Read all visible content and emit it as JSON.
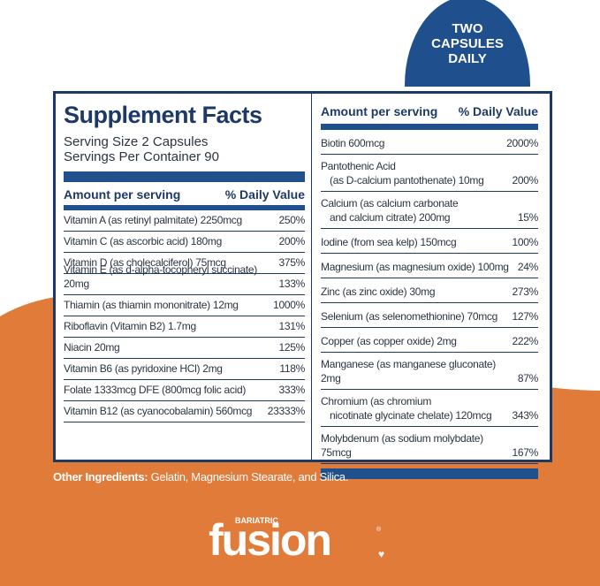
{
  "badge": {
    "text": [
      "TWO",
      "CAPSULES",
      "DAILY"
    ]
  },
  "facts": {
    "title": "Supplement Facts",
    "serving_size": "Serving Size 2 Capsules",
    "servings_per_container": "Servings Per Container 90",
    "header_amount": "Amount per serving",
    "header_dv": "% Daily Value",
    "left_rows": [
      {
        "name": "Vitamin A (as retinyl palmitate) 2250mcg",
        "dv": "250%"
      },
      {
        "name": "Vitamin C (as ascorbic acid) 180mg",
        "dv": "200%"
      },
      {
        "name": "Vitamin D (as cholecalciferol) 75mcg",
        "dv": "375%"
      },
      {
        "name": "Vitamin E (as d-alpha-tocopheryl succinate) 20mg",
        "dv": "133%"
      },
      {
        "name": "Thiamin (as thiamin mononitrate) 12mg",
        "dv": "1000%"
      },
      {
        "name": "Riboflavin (Vitamin B2) 1.7mg",
        "dv": "131%"
      },
      {
        "name": "Niacin 20mg",
        "dv": "125%"
      },
      {
        "name": "Vitamin B6 (as pyridoxine HCl) 2mg",
        "dv": "118%"
      },
      {
        "name": "Folate 1333mcg DFE (800mcg folic acid)",
        "dv": "333%"
      },
      {
        "name": "Vitamin B12 (as cyanocobalamin) 560mcg",
        "dv": "23333%"
      }
    ],
    "right_rows": [
      {
        "name": "Biotin 600mcg",
        "sub": "",
        "dv": "2000%"
      },
      {
        "name": "Pantothenic Acid",
        "sub": "(as D-calcium pantothenate) 10mg",
        "dv": "200%"
      },
      {
        "name": "Calcium (as calcium carbonate",
        "sub": "and calcium citrate) 200mg",
        "dv": "15%"
      },
      {
        "name": "Iodine (from sea kelp) 150mcg",
        "sub": "",
        "dv": "100%"
      },
      {
        "name": "Magnesium (as magnesium oxide) 100mg",
        "sub": "",
        "dv": "24%"
      },
      {
        "name": "Zinc (as zinc oxide) 30mg",
        "sub": "",
        "dv": "273%"
      },
      {
        "name": "Selenium (as selenomethionine) 70mcg",
        "sub": "",
        "dv": "127%"
      },
      {
        "name": "Copper (as copper oxide) 2mg",
        "sub": "",
        "dv": "222%"
      },
      {
        "name": "Manganese (as manganese gluconate) 2mg",
        "sub": "",
        "dv": "87%"
      },
      {
        "name": "Chromium (as chromium",
        "sub": "nicotinate glycinate chelate) 120mcg",
        "dv": "343%"
      },
      {
        "name": "Molybdenum (as sodium molybdate) 75mcg",
        "sub": "",
        "dv": "167%"
      }
    ]
  },
  "other_ingredients": {
    "label": "Other Ingredients:",
    "value": "Gelatin, Magnesium Stearate, and Silica."
  },
  "logo": {
    "small": "BARIATRIC",
    "big": "fusion",
    "reg": "®"
  },
  "colors": {
    "navy": "#1d3a66",
    "blue": "#1f4f8c",
    "orange": "#e07b39"
  }
}
